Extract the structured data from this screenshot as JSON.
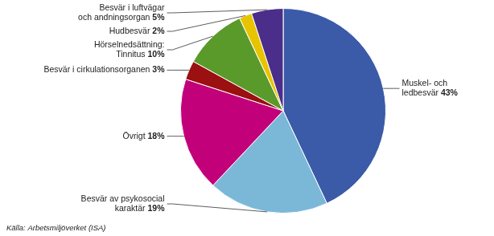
{
  "chart_data": {
    "type": "pie",
    "categories": [
      "Muskel- och\nledbesvär",
      "Besvär av psykosocial\nkaraktär",
      "Övrigt",
      "Besvär i cirkulationsorganen",
      "Hörselnedsättning:\nTinnitus",
      "Hudbesvär",
      "Besvär i luftvägar\noch andningsorgan"
    ],
    "values": [
      43,
      19,
      18,
      3,
      10,
      2,
      5
    ],
    "value_labels": [
      "43%",
      "19%",
      "18%",
      "3%",
      "10%",
      "2%",
      "5%"
    ],
    "colors": [
      "#3B5BA8",
      "#7BB8D8",
      "#C2007A",
      "#9B1010",
      "#5A9A2B",
      "#E8C400",
      "#4B2D8A"
    ],
    "data_labels": true,
    "annotations": [
      "Källa: Arbetsmiljöverket (ISA)"
    ]
  }
}
